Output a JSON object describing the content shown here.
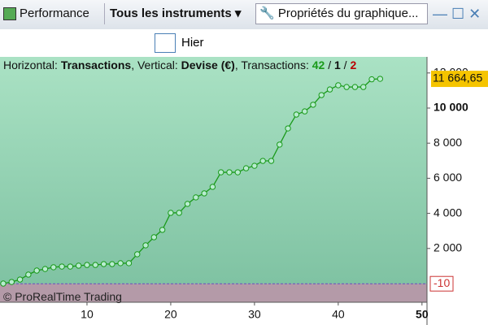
{
  "toolbar": {
    "performance": "Performance",
    "instruments": "Tous les instruments",
    "properties": "Propriétés du graphique...",
    "period": "Hier"
  },
  "chart_data": {
    "type": "line",
    "header": {
      "h_label": "Horizontal: ",
      "h_value": "Transactions",
      "v_label": ", Vertical: ",
      "v_value": "Devise (€)",
      "t_label": ", Transactions: ",
      "wins": "42",
      "sep1": " / ",
      "neutral": "1",
      "sep2": " / ",
      "losses": "2"
    },
    "watermark": "© ProRealTime Trading",
    "x": [
      0,
      1,
      2,
      3,
      4,
      5,
      6,
      7,
      8,
      9,
      10,
      11,
      12,
      13,
      14,
      15,
      16,
      17,
      18,
      19,
      20,
      21,
      22,
      23,
      24,
      25,
      26,
      27,
      28,
      29,
      30,
      31,
      32,
      33,
      34,
      35,
      36,
      37,
      38,
      39,
      40,
      41,
      42,
      43,
      44,
      45
    ],
    "series": [
      {
        "name": "Performance",
        "color": "#1a9a1a",
        "values": [
          0,
          90,
          230,
          510,
          740,
          830,
          930,
          970,
          970,
          1020,
          1060,
          1060,
          1110,
          1110,
          1160,
          1160,
          1670,
          2180,
          2640,
          3060,
          4030,
          4030,
          4540,
          4910,
          5140,
          5510,
          6340,
          6340,
          6340,
          6570,
          6710,
          6990,
          6990,
          7920,
          8840,
          9630,
          9810,
          10190,
          10740,
          11060,
          11300,
          11200,
          11200,
          11200,
          11640,
          11665
        ]
      }
    ],
    "xlim": [
      0,
      50.6
    ],
    "xticks": [
      10,
      20,
      30,
      40,
      50
    ],
    "ylim": [
      -1065,
      12824
    ],
    "yticks": [
      {
        "value": 2000,
        "label": "2 000"
      },
      {
        "value": 4000,
        "label": "4 000"
      },
      {
        "value": 6000,
        "label": "6 000"
      },
      {
        "value": 8000,
        "label": "8 000"
      },
      {
        "value": 10000,
        "label": "10 000"
      },
      {
        "value": 12000,
        "label": "12 000"
      }
    ],
    "zero_line": {
      "value": -10,
      "label": "-10"
    },
    "last_value": {
      "value": 11664.65,
      "label": "11 664,65"
    }
  }
}
